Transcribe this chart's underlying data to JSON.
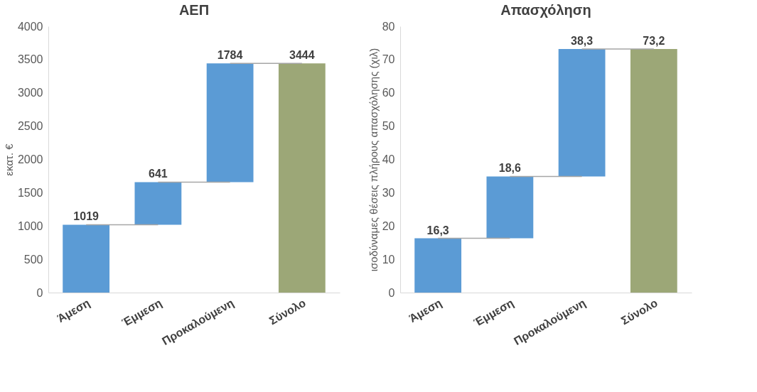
{
  "chart_data": [
    {
      "type": "bar",
      "title": "ΑΕΠ",
      "ylabel": "εκατ. €",
      "categories": [
        "Άμεση",
        "Έμμεση",
        "Προκαλούμενη",
        "Σύνολο"
      ],
      "values": [
        1019,
        641,
        1784,
        3444
      ],
      "base": [
        0,
        1019,
        1660,
        0
      ],
      "colors": [
        "#5b9bd5",
        "#5b9bd5",
        "#5b9bd5",
        "#9ca777"
      ],
      "data_labels": true,
      "ylim": [
        0,
        4000
      ],
      "yticks": [
        0,
        500,
        1000,
        1500,
        2000,
        2500,
        3000,
        3500,
        4000
      ],
      "grid": false
    },
    {
      "type": "bar",
      "title": "Απασχόληση",
      "ylabel": "ισοδύναμες θέσεις πλήρους απασχόλησης (χιλ)",
      "categories": [
        "Άμεση",
        "Έμμεση",
        "Προκαλούμενη",
        "Σύνολο"
      ],
      "values": [
        16.3,
        18.6,
        38.3,
        73.2
      ],
      "base": [
        0,
        16.3,
        34.9,
        0
      ],
      "colors": [
        "#5b9bd5",
        "#5b9bd5",
        "#5b9bd5",
        "#9ca777"
      ],
      "value_labels": [
        "16,3",
        "18,6",
        "38,3",
        "73,2"
      ],
      "ylim": [
        0,
        80
      ],
      "yticks": [
        0,
        10,
        20,
        30,
        40,
        50,
        60,
        70,
        80
      ],
      "grid": false
    }
  ]
}
